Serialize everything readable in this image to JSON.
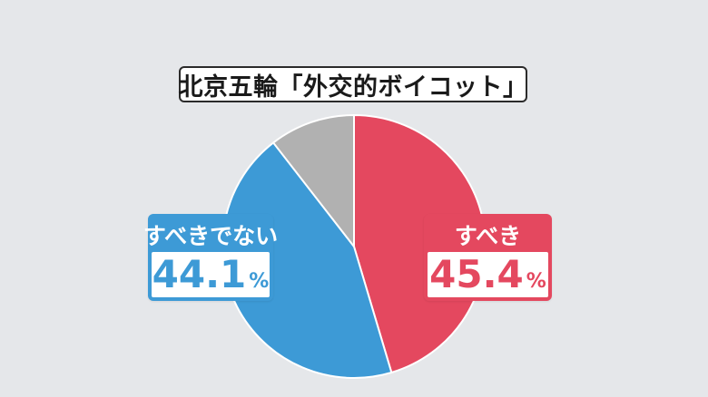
{
  "chart_data": {
    "type": "pie",
    "title": "北京五輪「外交的ボイコット」",
    "unit": "%",
    "slices": [
      {
        "label": "すべき",
        "value": 45.4,
        "display": "45.4",
        "color": "#e4485f"
      },
      {
        "label": "すべきでない",
        "value": 44.1,
        "display": "44.1",
        "color": "#3d9ad6"
      },
      {
        "label": "",
        "value": 10.5,
        "display": "",
        "color": "#b1b1b1"
      }
    ]
  },
  "colors": {
    "background": "#e5e7ea",
    "slice_border": "#ffffff"
  }
}
